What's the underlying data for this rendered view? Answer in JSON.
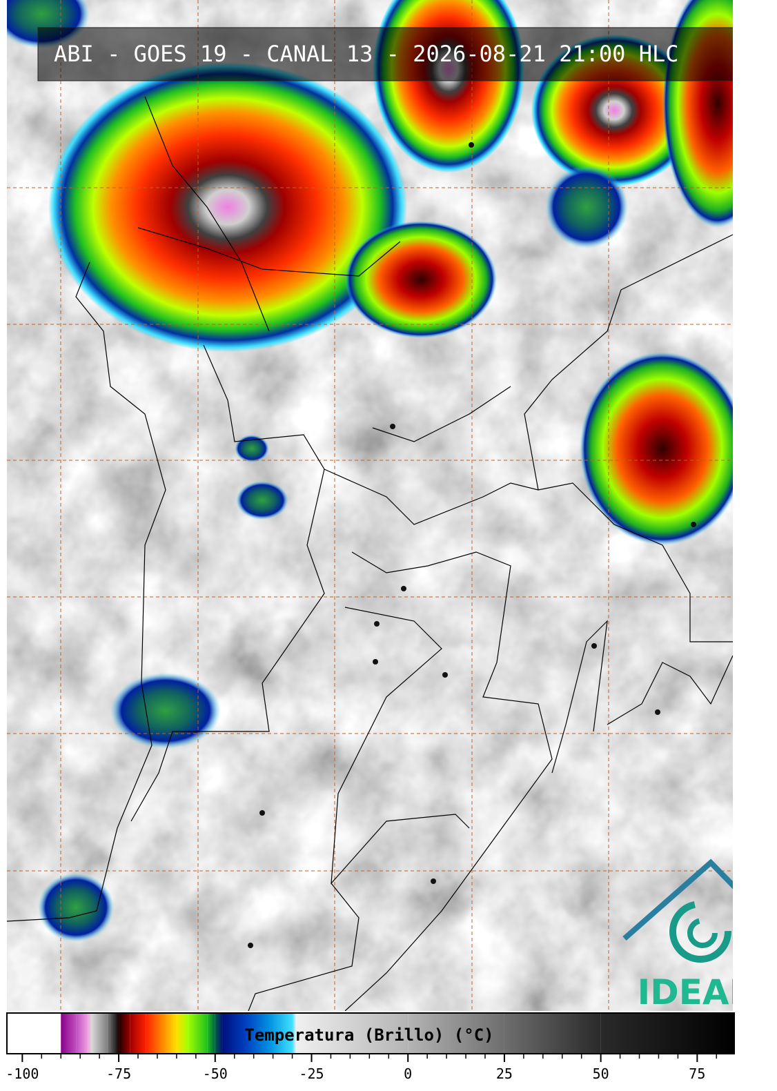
{
  "title": "ABI - GOES 19 - CANAL 13 - 2026-08-21 21:00 HLC",
  "colorbar": {
    "label": "Temperatura (Brillo) (°C)",
    "range": [
      -104,
      84.6
    ],
    "ticks": [
      -100,
      -75,
      -50,
      -25,
      0,
      25,
      50,
      75
    ],
    "minor_ticks": [
      -95,
      -90,
      -85,
      -80,
      -70,
      -65,
      -60,
      -55,
      -45,
      -40,
      -35,
      -30,
      -20,
      -15,
      -10,
      -5,
      5,
      10,
      15,
      20,
      30,
      35,
      40,
      45,
      55,
      60,
      65,
      70,
      80
    ],
    "stops": [
      {
        "value": -104,
        "color": "#ffffff"
      },
      {
        "value": -90,
        "color": "#ffffff"
      },
      {
        "value": -90,
        "color": "#8b008b"
      },
      {
        "value": -86,
        "color": "#c050c0"
      },
      {
        "value": -83,
        "color": "#f0a0e0"
      },
      {
        "value": -82,
        "color": "#d8d8d8"
      },
      {
        "value": -78,
        "color": "#808080"
      },
      {
        "value": -76,
        "color": "#303030"
      },
      {
        "value": -75,
        "color": "#200000"
      },
      {
        "value": -72,
        "color": "#a00000"
      },
      {
        "value": -68,
        "color": "#ff2000"
      },
      {
        "value": -64,
        "color": "#ff8000"
      },
      {
        "value": -60,
        "color": "#ffe000"
      },
      {
        "value": -57,
        "color": "#a0ff00"
      },
      {
        "value": -52,
        "color": "#20c020"
      },
      {
        "value": -50,
        "color": "#006040"
      },
      {
        "value": -48,
        "color": "#001080"
      },
      {
        "value": -42,
        "color": "#0040c0"
      },
      {
        "value": -36,
        "color": "#0090e0"
      },
      {
        "value": -30,
        "color": "#40e0ff"
      },
      {
        "value": -29,
        "color": "#f0f0f0"
      },
      {
        "value": 0,
        "color": "#b4b4b4"
      },
      {
        "value": 25,
        "color": "#6e6e6e"
      },
      {
        "value": 50,
        "color": "#2a2a2a"
      },
      {
        "value": 84.6,
        "color": "#000000"
      }
    ]
  },
  "logo": "IDEAM"
}
